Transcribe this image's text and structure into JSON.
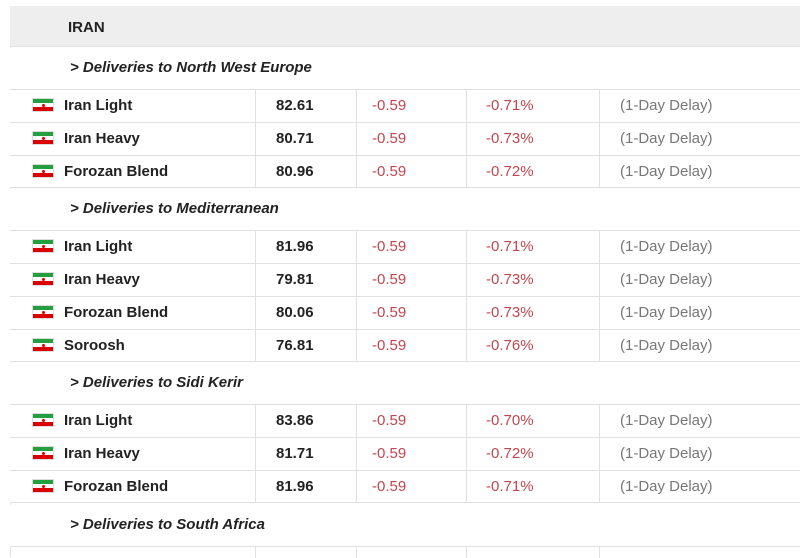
{
  "title": "IRAN",
  "sections": [
    {
      "label": "> Deliveries to North West Europe",
      "rows": [
        {
          "name": "Iran Light",
          "price": "82.61",
          "change": "-0.59",
          "pct": "-0.71%",
          "note": "(1-Day Delay)"
        },
        {
          "name": "Iran Heavy",
          "price": "80.71",
          "change": "-0.59",
          "pct": "-0.73%",
          "note": "(1-Day Delay)"
        },
        {
          "name": "Forozan Blend",
          "price": "80.96",
          "change": "-0.59",
          "pct": "-0.72%",
          "note": "(1-Day Delay)"
        }
      ]
    },
    {
      "label": "> Deliveries to Mediterranean",
      "rows": [
        {
          "name": "Iran Light",
          "price": "81.96",
          "change": "-0.59",
          "pct": "-0.71%",
          "note": "(1-Day Delay)"
        },
        {
          "name": "Iran Heavy",
          "price": "79.81",
          "change": "-0.59",
          "pct": "-0.73%",
          "note": "(1-Day Delay)"
        },
        {
          "name": "Forozan Blend",
          "price": "80.06",
          "change": "-0.59",
          "pct": "-0.73%",
          "note": "(1-Day Delay)"
        },
        {
          "name": "Soroosh",
          "price": "76.81",
          "change": "-0.59",
          "pct": "-0.76%",
          "note": "(1-Day Delay)"
        }
      ]
    },
    {
      "label": "> Deliveries to Sidi Kerir",
      "rows": [
        {
          "name": "Iran Light",
          "price": "83.86",
          "change": "-0.59",
          "pct": "-0.70%",
          "note": "(1-Day Delay)"
        },
        {
          "name": "Iran Heavy",
          "price": "81.71",
          "change": "-0.59",
          "pct": "-0.72%",
          "note": "(1-Day Delay)"
        },
        {
          "name": "Forozan Blend",
          "price": "81.96",
          "change": "-0.59",
          "pct": "-0.71%",
          "note": "(1-Day Delay)"
        }
      ]
    },
    {
      "label": "> Deliveries to South Africa",
      "rows": []
    }
  ],
  "colors": {
    "negative": "#c0474f",
    "note": "#777777",
    "header_bg": "#eeeeee",
    "flag_green": "#239f40",
    "flag_red": "#da0000"
  },
  "icons": {
    "row_flag": "iran-flag-icon"
  }
}
